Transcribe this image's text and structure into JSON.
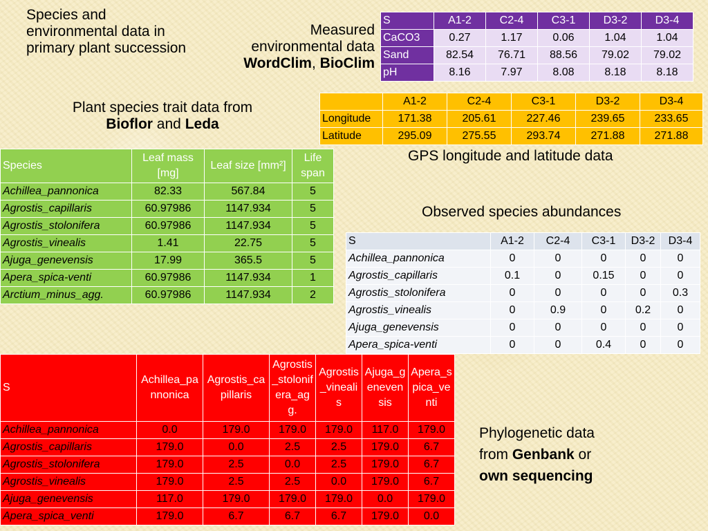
{
  "labels": {
    "intro": "Species and environmental data in primary plant succession",
    "measured_line1": "Measured",
    "measured_line2": "environmental data",
    "wordclim": "WordClim",
    "comma": ",",
    "bioclim": "BioClim",
    "trait_line1": "Plant species trait data from",
    "bioflor": "Bioflor",
    "and": "and",
    "leda": "Leda",
    "gps": "GPS longitude and latitude data",
    "observed": "Observed species abundances",
    "phylo_line1": "Phylogenetic data",
    "phylo_from": "from",
    "genbank": "Genbank",
    "or": "or",
    "own_seq": "own sequencing"
  },
  "env_table": {
    "header": [
      "S",
      "A1-2",
      "C2-4",
      "C3-1",
      "D3-2",
      "D3-4"
    ],
    "rows": [
      [
        "CaCO3",
        "0.27",
        "1.17",
        "0.06",
        "1.04",
        "1.04"
      ],
      [
        "Sand",
        "82.54",
        "76.71",
        "88.56",
        "79.02",
        "79.02"
      ],
      [
        "pH",
        "8.16",
        "7.97",
        "8.08",
        "8.18",
        "8.18"
      ]
    ]
  },
  "gps_table": {
    "header": [
      "",
      "A1-2",
      "C2-4",
      "C3-1",
      "D3-2",
      "D3-4"
    ],
    "rows": [
      [
        "Longitude",
        "171.38",
        "205.61",
        "227.46",
        "239.65",
        "233.65"
      ],
      [
        "Latitude",
        "295.09",
        "275.55",
        "293.74",
        "271.88",
        "271.88"
      ]
    ]
  },
  "trait_table": {
    "header": [
      "Species",
      "Leaf mass [mg]",
      "Leaf size [mm²]",
      "Life span"
    ],
    "rows": [
      [
        "Achillea_pannonica",
        "82.33",
        "567.84",
        "5"
      ],
      [
        "Agrostis_capillaris",
        "60.97986",
        "1147.934",
        "5"
      ],
      [
        "Agrostis_stolonifera",
        "60.97986",
        "1147.934",
        "5"
      ],
      [
        "Agrostis_vinealis",
        "1.41",
        "22.75",
        "5"
      ],
      [
        "Ajuga_genevensis",
        "17.99",
        "365.5",
        "5"
      ],
      [
        "Apera_spica-venti",
        "60.97986",
        "1147.934",
        "1"
      ],
      [
        "Arctium_minus_agg.",
        "60.97986",
        "1147.934",
        "2"
      ]
    ]
  },
  "abund_table": {
    "header": [
      "S",
      "A1-2",
      "C2-4",
      "C3-1",
      "D3-2",
      "D3-4"
    ],
    "rows": [
      [
        "Achillea_pannonica",
        "0",
        "0",
        "0",
        "0",
        "0"
      ],
      [
        "Agrostis_capillaris",
        "0.1",
        "0",
        "0.15",
        "0",
        "0"
      ],
      [
        "Agrostis_stolonifera",
        "0",
        "0",
        "0",
        "0",
        "0.3"
      ],
      [
        "Agrostis_vinealis",
        "0",
        "0.9",
        "0",
        "0.2",
        "0"
      ],
      [
        "Ajuga_genevensis",
        "0",
        "0",
        "0",
        "0",
        "0"
      ],
      [
        "Apera_spica-venti",
        "0",
        "0",
        "0.4",
        "0",
        "0"
      ]
    ]
  },
  "phylo_table": {
    "header": [
      "S",
      "Achillea_pannonica",
      "Agrostis_capillaris",
      "Agrostis_stolonifera_agg.",
      "Agrostis_vinealis",
      "Ajuga_genevensis",
      "Apera_spica_venti"
    ],
    "rows": [
      [
        "Achillea_pannonica",
        "0.0",
        "179.0",
        "179.0",
        "179.0",
        "117.0",
        "179.0"
      ],
      [
        "Agrostis_capillaris",
        "179.0",
        "0.0",
        "2.5",
        "2.5",
        "179.0",
        "6.7"
      ],
      [
        "Agrostis_stolonifera",
        "179.0",
        "2.5",
        "0.0",
        "2.5",
        "179.0",
        "6.7"
      ],
      [
        "Agrostis_vinealis",
        "179.0",
        "2.5",
        "2.5",
        "0.0",
        "179.0",
        "6.7"
      ],
      [
        "Ajuga_genevensis",
        "117.0",
        "179.0",
        "179.0",
        "179.0",
        "0.0",
        "179.0"
      ],
      [
        "Apera_spica_venti",
        "179.0",
        "6.7",
        "6.7",
        "6.7",
        "179.0",
        "0.0"
      ]
    ]
  }
}
